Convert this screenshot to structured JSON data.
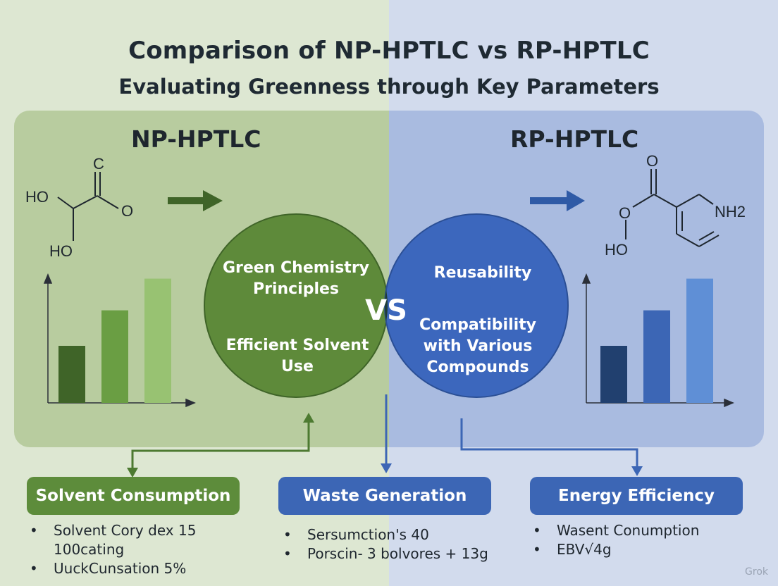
{
  "title": "Comparison of NP-HPTLC vs RP-HPTLC",
  "subtitle": "Evaluating Greenness through Key Parameters",
  "left_panel": {
    "heading": "NP-HPTLC",
    "molecule_labels": [
      "C",
      "HO",
      "O",
      "HO"
    ],
    "bars": [
      0.45,
      0.73,
      0.98
    ],
    "color": "#5d8c3b"
  },
  "right_panel": {
    "heading": "RP-HPTLC",
    "molecule_labels": [
      "O",
      "O",
      "NH2",
      "HO"
    ],
    "bars": [
      0.45,
      0.73,
      0.98
    ],
    "color": "#3c66b5"
  },
  "venn": {
    "left_items": [
      "Green Chemistry Principles",
      "Efficient Solvent Use"
    ],
    "right_items": [
      "Reusability",
      "Compatibility with Various Compounds"
    ],
    "center": "VS"
  },
  "parameters": [
    {
      "label": "Solvent Consumption",
      "bullets": [
        "Solvent Cory dex 15",
        "100cating",
        "UuckCunsation 5%"
      ]
    },
    {
      "label": "Waste Generation",
      "bullets": [
        "Sersumction's 40",
        "Porscin- 3 bolvores + 13g"
      ]
    },
    {
      "label": "Energy Efficiency",
      "bullets": [
        "Wasent Conumption",
        "EBV√4g"
      ]
    }
  ],
  "watermark": "Grok",
  "colors": {
    "green": "#5d8c3b",
    "blue": "#3c66b5",
    "venn_overlap": "#1f3d36"
  }
}
